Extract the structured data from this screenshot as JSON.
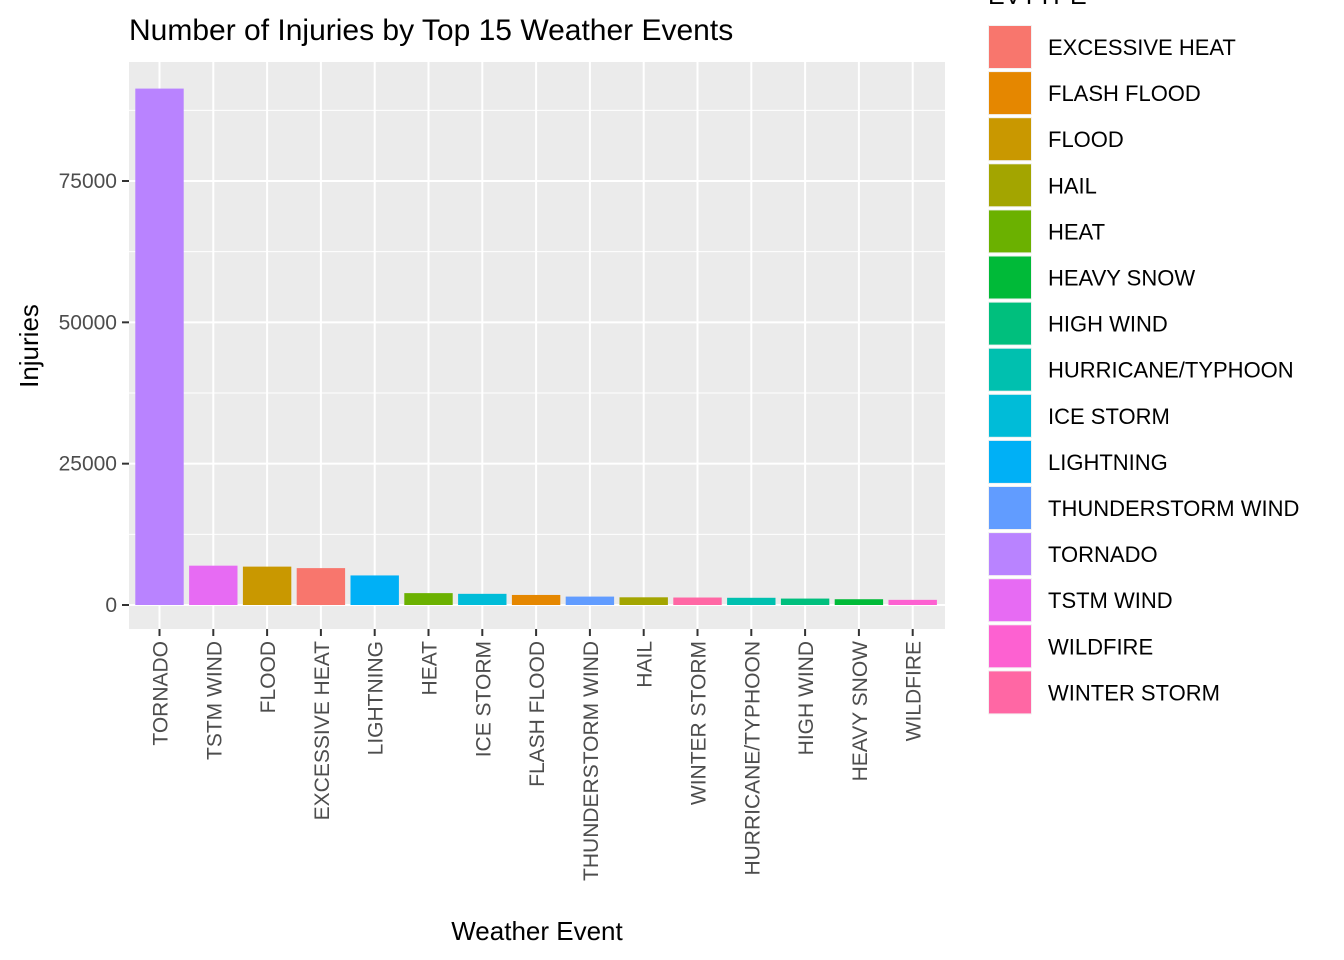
{
  "chart_data": {
    "type": "bar",
    "title": "Number of Injuries by Top 15 Weather Events",
    "xlabel": "Weather Event",
    "ylabel": "Injuries",
    "ylim": [
      0,
      95000
    ],
    "yticks": [
      0,
      25000,
      50000,
      75000
    ],
    "ytick_labels": [
      "0",
      "25000",
      "50000",
      "75000"
    ],
    "grid": true,
    "legend_placement": "right",
    "legend_title": "EVTYPE",
    "categories": [
      "TORNADO",
      "TSTM WIND",
      "FLOOD",
      "EXCESSIVE HEAT",
      "LIGHTNING",
      "HEAT",
      "ICE STORM",
      "FLASH FLOOD",
      "THUNDERSTORM WIND",
      "HAIL",
      "WINTER STORM",
      "HURRICANE/TYPHOON",
      "HIGH WIND",
      "HEAVY SNOW",
      "WILDFIRE"
    ],
    "values": [
      91346,
      6957,
      6789,
      6525,
      5230,
      2100,
      1975,
      1777,
      1488,
      1361,
      1321,
      1275,
      1137,
      1021,
      911
    ],
    "legend": [
      {
        "label": "EXCESSIVE HEAT",
        "color": "#F8766D"
      },
      {
        "label": "FLASH FLOOD",
        "color": "#E58700"
      },
      {
        "label": "FLOOD",
        "color": "#C99800"
      },
      {
        "label": "HAIL",
        "color": "#A3A500"
      },
      {
        "label": "HEAT",
        "color": "#6BB100"
      },
      {
        "label": "HEAVY SNOW",
        "color": "#00BA38"
      },
      {
        "label": "HIGH WIND",
        "color": "#00BF7D"
      },
      {
        "label": "HURRICANE/TYPHOON",
        "color": "#00C0AF"
      },
      {
        "label": "ICE STORM",
        "color": "#00BCD8"
      },
      {
        "label": "LIGHTNING",
        "color": "#00B0F6"
      },
      {
        "label": "THUNDERSTORM WIND",
        "color": "#619CFF"
      },
      {
        "label": "TORNADO",
        "color": "#B983FF"
      },
      {
        "label": "TSTM WIND",
        "color": "#E76BF3"
      },
      {
        "label": "WILDFIRE",
        "color": "#FD61D1"
      },
      {
        "label": "WINTER STORM",
        "color": "#FF67A4"
      }
    ]
  }
}
